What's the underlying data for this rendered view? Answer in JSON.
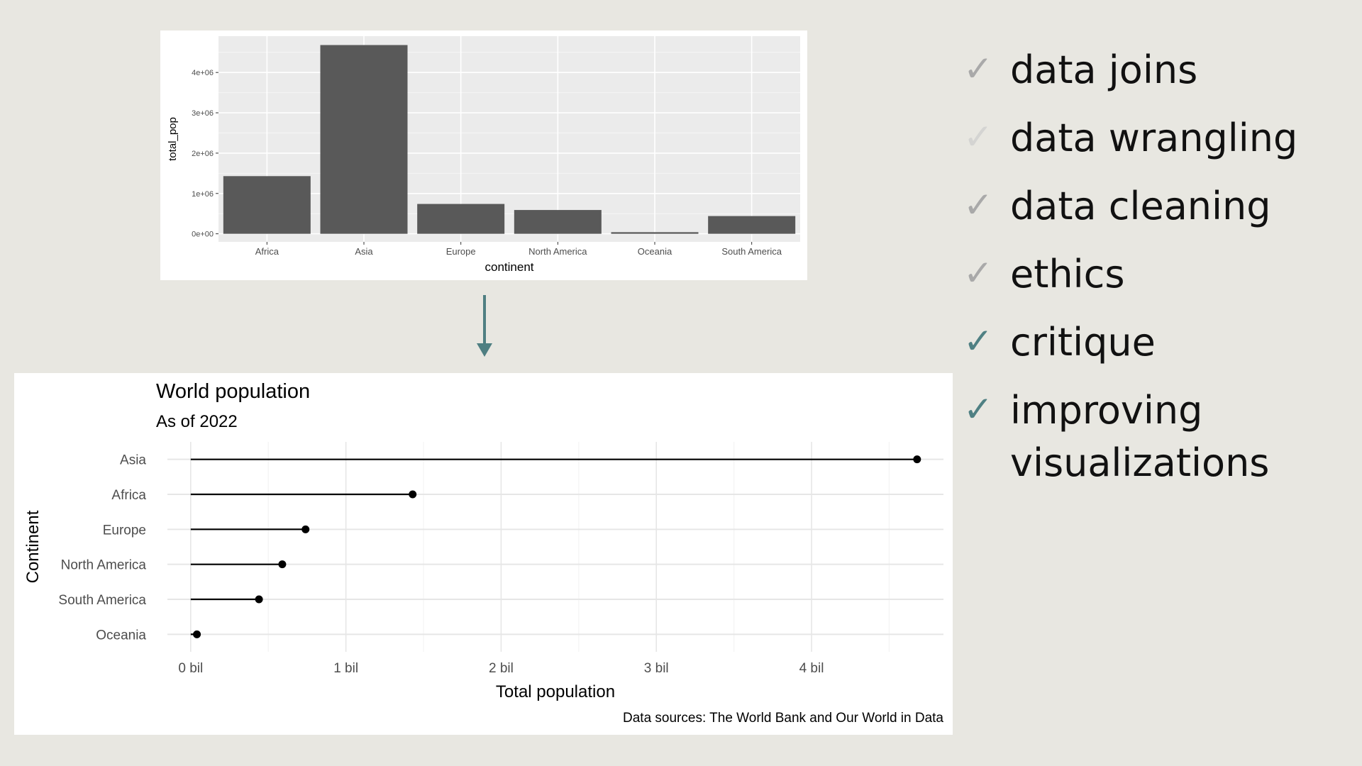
{
  "chart_data": [
    {
      "type": "bar",
      "title": "",
      "xlabel": "continent",
      "ylabel": "total_pop",
      "categories": [
        "Africa",
        "Asia",
        "Europe",
        "North America",
        "Oceania",
        "South America"
      ],
      "values": [
        1430000,
        4680000,
        740000,
        590000,
        40000,
        440000
      ],
      "ylim": [
        -200000,
        4900000
      ],
      "yticks": [
        0,
        1000000,
        2000000,
        3000000,
        4000000
      ],
      "ytick_labels": [
        "0e+00",
        "1e+06",
        "2e+06",
        "3e+06",
        "4e+06"
      ],
      "bar_color": "#595959",
      "panel_bg": "#ebebeb",
      "grid": true
    },
    {
      "type": "lollipop",
      "title": "World population",
      "subtitle": "As of 2022",
      "xlabel": "Total population",
      "ylabel": "Continent",
      "caption": "Data sources: The World Bank and Our World in Data",
      "categories": [
        "Asia",
        "Africa",
        "Europe",
        "North America",
        "South America",
        "Oceania"
      ],
      "values": [
        4.68,
        1.43,
        0.74,
        0.59,
        0.44,
        0.04
      ],
      "xlim": [
        -0.15,
        4.85
      ],
      "xticks": [
        0,
        1,
        2,
        3,
        4
      ],
      "xtick_labels": [
        "0 bil",
        "1 bil",
        "2 bil",
        "3 bil",
        "4 bil"
      ],
      "color": "#000000",
      "grid": true
    }
  ],
  "arrow_color": "#4f7f82",
  "checklist": [
    {
      "label": "data joins",
      "color": "#a9a9a9"
    },
    {
      "label": "data wrangling",
      "color": "#d4d4d2"
    },
    {
      "label": "data cleaning",
      "color": "#a9a9a9"
    },
    {
      "label": "ethics",
      "color": "#a9a9a9"
    },
    {
      "label": "critique",
      "color": "#4f8083"
    },
    {
      "label": "improving visualizations",
      "color": "#4f8083"
    }
  ],
  "check_icon": "check-mark-icon"
}
